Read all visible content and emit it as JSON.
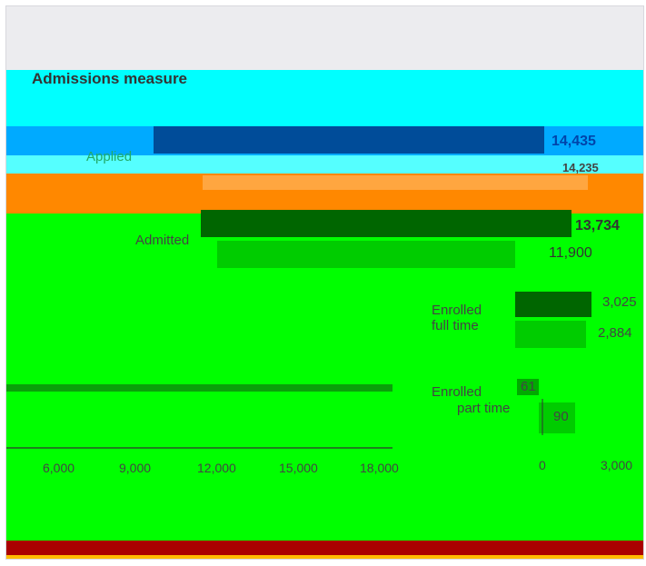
{
  "colors": {
    "page_top": "#ececef",
    "cyan_band": "#00ffff",
    "blue_band": "#00aaff",
    "orange_band": "#ff8800",
    "green_band": "#00ff00",
    "bar_dark_blue": "#004c99",
    "bar_dark_green": "#006600",
    "bar_green": "#00cc00",
    "footer_red": "#aa0000",
    "footer_yellow": "#ffbb00"
  },
  "chart_data": [
    {
      "type": "bar",
      "orientation": "horizontal",
      "title": "Admissions measure",
      "categories": [
        "Applied",
        "Admitted"
      ],
      "series": [
        {
          "values": [
            14435,
            13734
          ]
        },
        {
          "values": [
            14235,
            11900
          ]
        }
      ],
      "xlim": [
        0,
        20000
      ],
      "xticks": [
        "6,000",
        "9,000",
        "12,000",
        "15,000",
        "18,000"
      ],
      "legend": "bottom",
      "grid": false
    },
    {
      "type": "bar",
      "orientation": "horizontal",
      "categories": [
        "Enrolled full time",
        "Enrolled part time"
      ],
      "series": [
        {
          "values": [
            3025,
            61
          ]
        },
        {
          "values": [
            2884,
            90
          ]
        }
      ],
      "xlim": [
        0,
        3000
      ],
      "xticks": [
        "0",
        "3,000"
      ],
      "grid": false
    }
  ],
  "chart_text": {
    "title": "Admissions measure",
    "labels": {
      "applied": "Applied",
      "admitted": "Admitted",
      "enrolled_full_time_line1": "Enrolled",
      "enrolled_full_time_line2": "full time",
      "enrolled_part_time_line1": "Enrolled",
      "enrolled_part_time_line2": "part time"
    },
    "values": {
      "applied_a": "14,435",
      "applied_b": "14,235",
      "admitted_a": "13,734",
      "admitted_b": "11,900",
      "full_time_a": "3,025",
      "full_time_b": "2,884",
      "part_time_a": "61",
      "part_time_b": "90"
    },
    "ticks_left": [
      "6,000",
      "9,000",
      "12,000",
      "15,000",
      "18,000"
    ],
    "ticks_right": [
      "0",
      "3,000"
    ]
  }
}
